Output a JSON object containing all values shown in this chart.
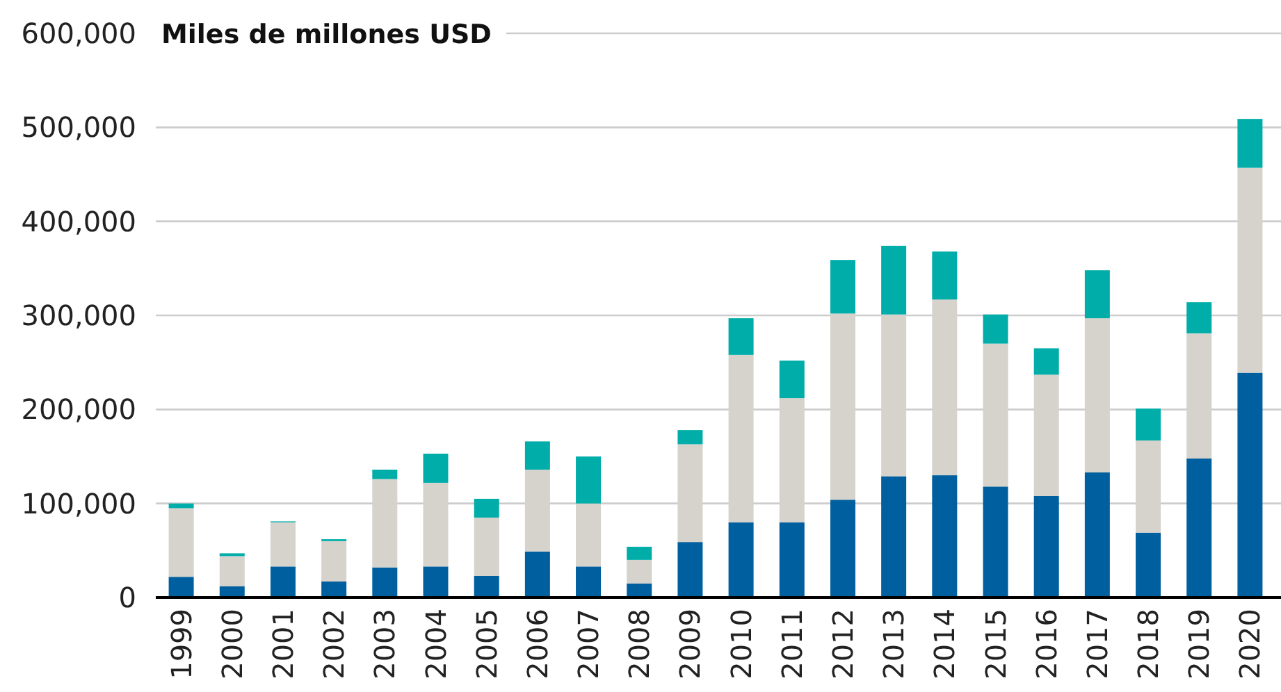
{
  "chart_data": {
    "type": "bar",
    "stacked": true,
    "ylabel": "Miles de millones USD",
    "categories": [
      "1999",
      "2000",
      "2001",
      "2002",
      "2003",
      "2004",
      "2005",
      "2006",
      "2007",
      "2008",
      "2009",
      "2010",
      "2011",
      "2012",
      "2013",
      "2014",
      "2015",
      "2016",
      "2017",
      "2018",
      "2019",
      "2020"
    ],
    "series": [
      {
        "color": "#005f9e",
        "values": [
          22000,
          12000,
          33000,
          17000,
          32000,
          33000,
          23000,
          49000,
          33000,
          15000,
          59000,
          80000,
          80000,
          104000,
          129000,
          130000,
          118000,
          108000,
          133000,
          69000,
          148000,
          239000
        ]
      },
      {
        "color": "#d6d2cc",
        "values": [
          73000,
          32000,
          47000,
          43000,
          94000,
          89000,
          62000,
          87000,
          67000,
          25000,
          104000,
          178000,
          132000,
          198000,
          172000,
          187000,
          152000,
          129000,
          164000,
          98000,
          133000,
          218000
        ]
      },
      {
        "color": "#00ada9",
        "values": [
          5000,
          3000,
          1000,
          2000,
          10000,
          31000,
          20000,
          30000,
          50000,
          14000,
          15000,
          39000,
          40000,
          57000,
          73000,
          51000,
          31000,
          28000,
          51000,
          34000,
          33000,
          52000
        ]
      }
    ],
    "ylim": [
      0,
      600000
    ],
    "yticks": [
      {
        "value": 0,
        "label": "0"
      },
      {
        "value": 100000,
        "label": "100,000"
      },
      {
        "value": 200000,
        "label": "200,000"
      },
      {
        "value": 300000,
        "label": "300,000"
      },
      {
        "value": 400000,
        "label": "400,000"
      },
      {
        "value": 500000,
        "label": "500,000"
      },
      {
        "value": 600000,
        "label": "600,000"
      }
    ],
    "grid": "y"
  }
}
